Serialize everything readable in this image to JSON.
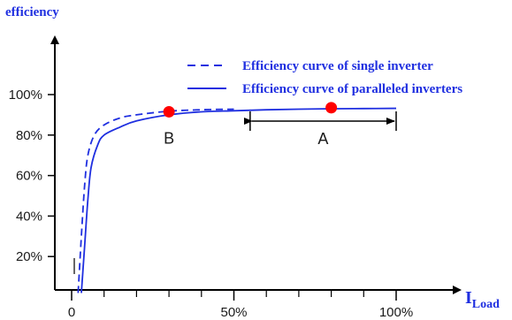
{
  "chart_data": {
    "type": "line",
    "ylabel": "efficiency",
    "xlabel": {
      "main": "I",
      "subscript": "Load"
    },
    "x_ticks": [
      {
        "value": 0,
        "label": "0"
      },
      {
        "value": 50,
        "label": "50%"
      },
      {
        "value": 100,
        "label": "100%"
      }
    ],
    "y_ticks": [
      {
        "value": 20,
        "label": "20%"
      },
      {
        "value": 40,
        "label": "40%"
      },
      {
        "value": 60,
        "label": "60%"
      },
      {
        "value": 80,
        "label": "80%"
      },
      {
        "value": 100,
        "label": "100%"
      }
    ],
    "x_minor_ticks": [
      10,
      20,
      30,
      40,
      60,
      70,
      80,
      90
    ],
    "xlim": [
      0,
      100
    ],
    "ylim": [
      0,
      100
    ],
    "series": [
      {
        "name": "Efficiency curve of single inverter",
        "style": "dashed",
        "color": "#1f2fe0",
        "points": [
          [
            2,
            2
          ],
          [
            3,
            30
          ],
          [
            4,
            55
          ],
          [
            5,
            70
          ],
          [
            7,
            80
          ],
          [
            10,
            85
          ],
          [
            15,
            88.5
          ],
          [
            20,
            90
          ],
          [
            30,
            91.8
          ],
          [
            40,
            92.5
          ],
          [
            50,
            92.8
          ]
        ]
      },
      {
        "name": "Efficiency curve of paralleled inverters",
        "style": "solid",
        "color": "#1f2fe0",
        "points": [
          [
            3,
            2
          ],
          [
            4,
            25
          ],
          [
            5,
            48
          ],
          [
            6,
            64
          ],
          [
            8,
            75
          ],
          [
            10,
            80
          ],
          [
            15,
            84
          ],
          [
            20,
            87
          ],
          [
            30,
            90
          ],
          [
            40,
            91.5
          ],
          [
            50,
            92
          ],
          [
            60,
            92.5
          ],
          [
            70,
            92.8
          ],
          [
            80,
            93
          ],
          [
            90,
            93.1
          ],
          [
            100,
            93.2
          ]
        ]
      }
    ],
    "markers": [
      {
        "label": "B",
        "x": 30,
        "y": 91.5,
        "color": "#ff0000"
      },
      {
        "label": "A",
        "x": 80,
        "y": 93.5,
        "color": "#ff0000"
      }
    ],
    "range_annotation": {
      "label": "A",
      "x_start": 55,
      "x_end": 100
    }
  }
}
